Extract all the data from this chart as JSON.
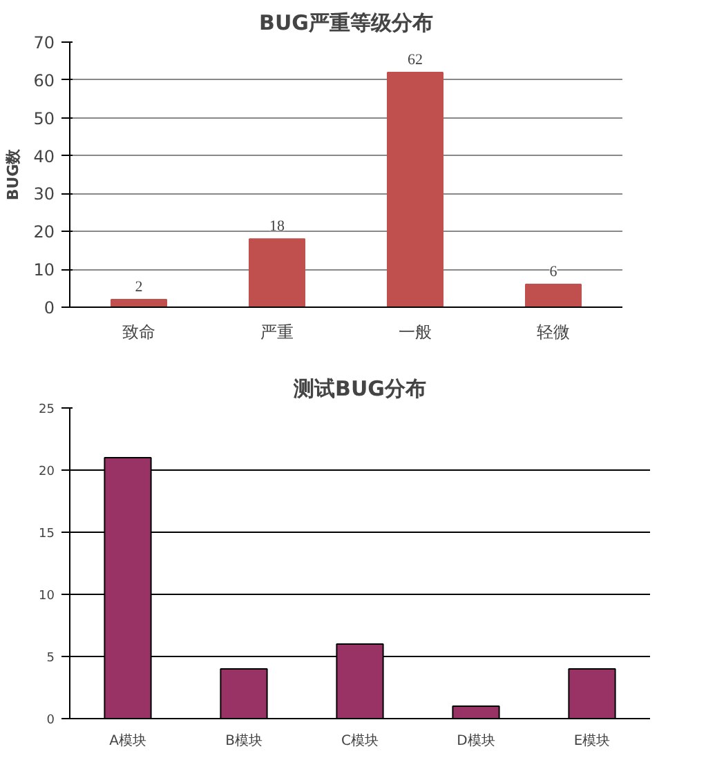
{
  "chart_data": [
    {
      "type": "bar",
      "title": "BUG严重等级分布",
      "ylabel": "BUG数",
      "categories": [
        "致命",
        "严重",
        "一般",
        "轻微"
      ],
      "values": [
        2,
        18,
        62,
        6
      ],
      "color": "#c0504d",
      "ylim": [
        0,
        70
      ],
      "yticks": [
        0,
        10,
        20,
        30,
        40,
        50,
        60,
        70
      ],
      "grid": "y",
      "data_labels": true
    },
    {
      "type": "bar",
      "title": "测试BUG分布",
      "categories": [
        "A模块",
        "B模块",
        "C模块",
        "D模块",
        "E模块"
      ],
      "values": [
        21,
        4,
        6,
        1,
        4
      ],
      "color": "#993366",
      "ylim": [
        0,
        25
      ],
      "yticks": [
        0,
        5,
        10,
        15,
        20,
        25
      ],
      "grid": "y"
    }
  ]
}
